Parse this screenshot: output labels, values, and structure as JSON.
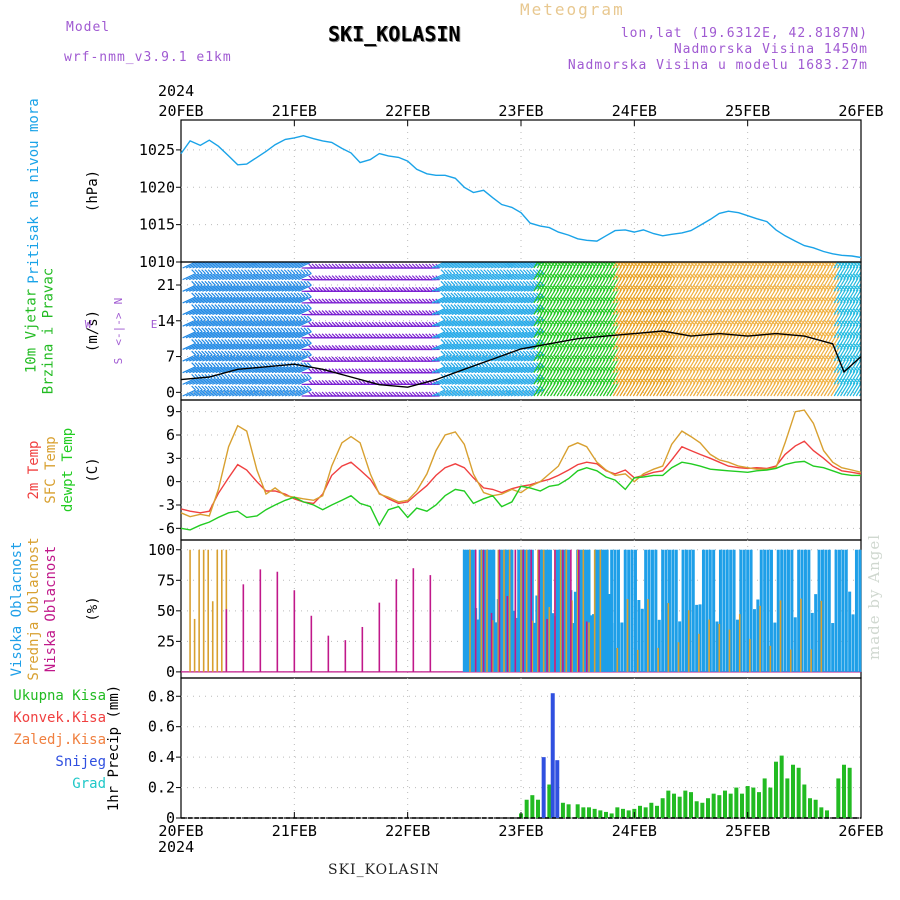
{
  "header": {
    "model_label": "Model",
    "model_name": "wrf-nmm_v3.9.1 e1km",
    "station": "SKI_KOLASIN",
    "product": "Meteogram",
    "lonlat": "lon,lat (19.6312E, 42.8187N)",
    "elevation": "Nadmorska Visina 1450m",
    "model_elevation": "Nadmorska Visina u modelu 1683.27m",
    "year_top": "2024",
    "year_bottom": "2024",
    "footer_station": "SKI_KOLASIN",
    "watermark": "made by Angel"
  },
  "chart_data": [
    {
      "type": "line",
      "panel": "pressure",
      "ylabel_lines": [
        "Pritisak na nivou mora"
      ],
      "unit": "(hPa)",
      "x_days": [
        0,
        0.08,
        0.17,
        0.25,
        0.33,
        0.42,
        0.5,
        0.58,
        0.67,
        0.75,
        0.83,
        0.92,
        1,
        1.08,
        1.17,
        1.25,
        1.33,
        1.42,
        1.5,
        1.58,
        1.67,
        1.75,
        1.83,
        1.92,
        2,
        2.08,
        2.17,
        2.25,
        2.33,
        2.42,
        2.5,
        2.58,
        2.67,
        2.75,
        2.83,
        2.92,
        3,
        3.08,
        3.17,
        3.25,
        3.33,
        3.42,
        3.5,
        3.58,
        3.67,
        3.75,
        3.83,
        3.92,
        4,
        4.08,
        4.17,
        4.25,
        4.33,
        4.42,
        4.5,
        4.58,
        4.67,
        4.75,
        4.83,
        4.92,
        5,
        5.08,
        5.17,
        5.25,
        5.33,
        5.42,
        5.5,
        5.58,
        5.67,
        5.75,
        5.83,
        5.92,
        6
      ],
      "values": [
        1024.5,
        1026.2,
        1025.6,
        1026.3,
        1025.5,
        1024.2,
        1023.0,
        1023.1,
        1024.0,
        1024.8,
        1025.7,
        1026.4,
        1026.6,
        1026.9,
        1026.5,
        1026.2,
        1026.0,
        1025.2,
        1024.6,
        1023.3,
        1023.7,
        1024.5,
        1024.2,
        1024.0,
        1023.5,
        1022.4,
        1021.8,
        1021.6,
        1021.6,
        1021.2,
        1020.0,
        1019.3,
        1019.6,
        1018.6,
        1017.7,
        1017.3,
        1016.6,
        1015.2,
        1014.8,
        1014.6,
        1014.0,
        1013.6,
        1013.1,
        1012.9,
        1012.8,
        1013.5,
        1014.2,
        1014.3,
        1014.0,
        1014.3,
        1013.8,
        1013.5,
        1013.7,
        1013.9,
        1014.2,
        1014.9,
        1015.7,
        1016.5,
        1016.8,
        1016.6,
        1016.2,
        1015.8,
        1015.4,
        1014.3,
        1013.5,
        1012.8,
        1012.2,
        1011.9,
        1011.4,
        1011.1,
        1010.9,
        1010.8,
        1010.6
      ],
      "color": "#1aa3e8",
      "yticks": [
        1010,
        1015,
        1020,
        1025
      ],
      "ylim": [
        1010,
        1029
      ]
    },
    {
      "type": "line",
      "panel": "wind",
      "ylabel_lines": [
        "10m Vjetar",
        "Brzina i Pravac"
      ],
      "unit": "(m/s)",
      "compass": [
        "N",
        "<-|->",
        "S",
        "W",
        "E"
      ],
      "x_days": [
        0,
        0.25,
        0.5,
        0.75,
        1,
        1.25,
        1.5,
        1.75,
        2,
        2.25,
        2.5,
        2.75,
        3,
        3.25,
        3.5,
        3.75,
        4,
        4.25,
        4.5,
        4.75,
        5,
        5.25,
        5.5,
        5.75,
        5.85,
        6
      ],
      "values": [
        2.5,
        3.0,
        4.5,
        5.0,
        5.5,
        4.5,
        3.0,
        1.5,
        1.0,
        2.5,
        4.5,
        6.5,
        8.5,
        9.5,
        10.5,
        11.0,
        11.5,
        12.0,
        11.0,
        11.5,
        11.0,
        11.5,
        11.0,
        9.5,
        4.0,
        7.0
      ],
      "color": "#000000",
      "yticks": [
        0,
        7,
        14,
        21
      ],
      "ylim": [
        -1.5,
        25.5
      ],
      "barb_regimes": [
        {
          "x_start": 0.0,
          "x_end": 1.05,
          "color": "#1e88e5"
        },
        {
          "x_start": 1.05,
          "x_end": 2.2,
          "color": "#7b1fd2"
        },
        {
          "x_start": 2.2,
          "x_end": 3.1,
          "color": "#1ea7e8"
        },
        {
          "x_start": 3.1,
          "x_end": 3.8,
          "color": "#1fc71f"
        },
        {
          "x_start": 3.8,
          "x_end": 4.3,
          "color": "#e8a020"
        },
        {
          "x_start": 4.3,
          "x_end": 5.75,
          "color": "#f0b040"
        },
        {
          "x_start": 5.75,
          "x_end": 6.0,
          "color": "#22bbe0"
        }
      ]
    },
    {
      "type": "line",
      "panel": "temperature",
      "ylabel_lines": [
        "2m Temp",
        "SFC Temp",
        "dewpt Temp"
      ],
      "unit": "(C)",
      "x_days": [
        0,
        0.08,
        0.17,
        0.25,
        0.33,
        0.42,
        0.5,
        0.58,
        0.67,
        0.75,
        0.83,
        0.92,
        1,
        1.08,
        1.17,
        1.25,
        1.33,
        1.42,
        1.5,
        1.58,
        1.67,
        1.75,
        1.83,
        1.92,
        2,
        2.08,
        2.17,
        2.25,
        2.33,
        2.42,
        2.5,
        2.58,
        2.67,
        2.75,
        2.83,
        2.92,
        3,
        3.08,
        3.17,
        3.25,
        3.33,
        3.42,
        3.5,
        3.58,
        3.67,
        3.75,
        3.83,
        3.92,
        4,
        4.08,
        4.17,
        4.25,
        4.33,
        4.42,
        4.5,
        4.58,
        4.67,
        4.75,
        4.83,
        4.92,
        5,
        5.08,
        5.17,
        5.25,
        5.33,
        5.42,
        5.5,
        5.58,
        5.67,
        5.75,
        5.83,
        5.92,
        6
      ],
      "series": [
        {
          "name": "2m Temp",
          "color": "#f04040",
          "values": [
            -3.5,
            -3.8,
            -4.0,
            -3.8,
            -1.5,
            0.5,
            2.2,
            1.5,
            0.0,
            -1.2,
            -1.2,
            -1.6,
            -2.2,
            -2.6,
            -2.8,
            -1.6,
            0.8,
            2.0,
            2.5,
            1.5,
            0.3,
            -1.5,
            -2.2,
            -2.8,
            -2.6,
            -1.6,
            -0.5,
            0.8,
            1.8,
            2.3,
            1.8,
            0.5,
            -0.8,
            -1.0,
            -1.4,
            -0.9,
            -0.6,
            -0.4,
            0.0,
            0.3,
            0.8,
            1.5,
            2.2,
            2.5,
            2.3,
            1.4,
            1.0,
            1.5,
            0.5,
            0.8,
            1.2,
            1.4,
            2.8,
            4.5,
            4.0,
            3.5,
            3.0,
            2.5,
            2.0,
            1.8,
            1.7,
            1.8,
            1.7,
            2.0,
            3.5,
            4.6,
            5.2,
            4.0,
            3.0,
            2.0,
            1.4,
            1.2,
            1.0
          ]
        },
        {
          "name": "SFC Temp",
          "color": "#d8a030",
          "values": [
            -4.0,
            -4.5,
            -4.2,
            -4.4,
            -1.0,
            4.5,
            7.2,
            6.5,
            1.5,
            -1.6,
            -0.8,
            -1.8,
            -2.0,
            -2.2,
            -2.4,
            -1.8,
            2.0,
            5.0,
            5.8,
            5.0,
            1.0,
            -1.6,
            -2.0,
            -2.6,
            -2.4,
            -1.2,
            1.0,
            4.0,
            6.0,
            6.4,
            4.8,
            1.0,
            -1.4,
            -1.8,
            -1.6,
            -1.0,
            -1.4,
            -0.6,
            0.0,
            1.0,
            2.0,
            4.5,
            5.0,
            4.5,
            2.5,
            1.5,
            0.8,
            1.0,
            0.0,
            1.0,
            1.6,
            2.0,
            4.8,
            6.5,
            5.8,
            5.0,
            3.5,
            2.8,
            2.5,
            2.0,
            1.8,
            1.6,
            1.6,
            1.8,
            5.0,
            9.0,
            9.2,
            7.5,
            4.0,
            2.5,
            1.8,
            1.5,
            1.2
          ]
        },
        {
          "name": "dewpt Temp",
          "color": "#22cc22",
          "values": [
            -6.0,
            -6.2,
            -5.6,
            -5.2,
            -4.6,
            -4.0,
            -3.8,
            -4.6,
            -4.4,
            -3.6,
            -3.0,
            -2.4,
            -2.0,
            -2.6,
            -3.0,
            -3.6,
            -3.0,
            -2.4,
            -1.8,
            -2.8,
            -3.2,
            -5.6,
            -3.6,
            -3.2,
            -4.6,
            -3.4,
            -3.8,
            -3.0,
            -1.8,
            -1.0,
            -1.2,
            -2.8,
            -2.2,
            -1.8,
            -3.2,
            -2.6,
            -0.6,
            -0.8,
            -1.2,
            -0.6,
            -0.4,
            0.4,
            1.4,
            1.8,
            1.4,
            0.6,
            0.2,
            -1.0,
            0.5,
            0.6,
            0.8,
            0.8,
            1.8,
            2.5,
            2.3,
            2.0,
            1.6,
            1.5,
            1.4,
            1.3,
            1.2,
            1.4,
            1.5,
            1.7,
            2.2,
            2.5,
            2.6,
            2.0,
            1.8,
            1.4,
            1.0,
            0.8,
            0.8
          ]
        }
      ],
      "yticks": [
        -6,
        -3,
        0,
        3,
        6,
        9
      ],
      "ylim": [
        -7.5,
        10.5
      ]
    },
    {
      "type": "bar",
      "panel": "cloud",
      "ylabel_lines": [
        "Visoka Oblacnost",
        "Srednja Oblacnost",
        "Niska Oblacnost"
      ],
      "unit": "(%)",
      "series": [
        {
          "name": "Visoka Oblacnost",
          "color": "#1e9fe8"
        },
        {
          "name": "Srednja Oblacnost",
          "color": "#d8a030"
        },
        {
          "name": "Niska Oblacnost",
          "color": "#c0188a"
        }
      ],
      "segments": [
        {
          "x_start": 0.08,
          "x_end": 0.4,
          "series": 1,
          "value": 100,
          "step": 0.04
        },
        {
          "x_start": 0.4,
          "x_end": 2.3,
          "series": 2,
          "value": 85,
          "step": 0.15
        },
        {
          "x_start": 2.5,
          "x_end": 3.8,
          "series": 0,
          "value": 100,
          "step": 0.02
        },
        {
          "x_start": 2.55,
          "x_end": 3.7,
          "series": 1,
          "value": 100,
          "step": 0.05
        },
        {
          "x_start": 2.6,
          "x_end": 3.6,
          "series": 2,
          "value": 100,
          "step": 0.07
        },
        {
          "x_start": 3.8,
          "x_end": 6.0,
          "series": 0,
          "value": 100,
          "step": 0.03
        },
        {
          "x_start": 3.85,
          "x_end": 5.7,
          "series": 1,
          "value": 60,
          "step": 0.09
        }
      ],
      "yticks": [
        0,
        25,
        50,
        75,
        100
      ],
      "ylim": [
        -5,
        108
      ]
    },
    {
      "type": "bar",
      "panel": "precip",
      "ylabel_lines": [
        "1hr Precip"
      ],
      "unit": "(mm)",
      "legend": [
        {
          "name": "Ukupna Kisa",
          "color": "#22bb22"
        },
        {
          "name": "Konvek.Kisa",
          "color": "#f04040"
        },
        {
          "name": "Zaledj.Kisa",
          "color": "#f08040"
        },
        {
          "name": "Snijeg",
          "color": "#3050e0"
        },
        {
          "name": "Grad",
          "color": "#20c8c8"
        }
      ],
      "x_days": [
        3.0,
        3.05,
        3.1,
        3.15,
        3.2,
        3.25,
        3.28,
        3.32,
        3.37,
        3.42,
        3.5,
        3.55,
        3.6,
        3.65,
        3.7,
        3.75,
        3.8,
        3.85,
        3.9,
        3.95,
        4.0,
        4.05,
        4.1,
        4.15,
        4.2,
        4.25,
        4.3,
        4.35,
        4.4,
        4.45,
        4.5,
        4.55,
        4.6,
        4.65,
        4.7,
        4.75,
        4.8,
        4.85,
        4.9,
        4.95,
        5.0,
        5.05,
        5.1,
        5.15,
        5.2,
        5.25,
        5.3,
        5.35,
        5.4,
        5.45,
        5.5,
        5.55,
        5.6,
        5.65,
        5.7,
        5.8,
        5.85,
        5.9
      ],
      "values": [
        0.03,
        0.12,
        0.15,
        0.12,
        0.4,
        0.22,
        0.82,
        0.38,
        0.1,
        0.09,
        0.09,
        0.07,
        0.07,
        0.06,
        0.05,
        0.04,
        0.03,
        0.07,
        0.06,
        0.05,
        0.06,
        0.08,
        0.07,
        0.1,
        0.08,
        0.13,
        0.18,
        0.16,
        0.14,
        0.18,
        0.17,
        0.11,
        0.1,
        0.13,
        0.16,
        0.15,
        0.18,
        0.16,
        0.2,
        0.16,
        0.21,
        0.2,
        0.17,
        0.26,
        0.2,
        0.37,
        0.41,
        0.26,
        0.35,
        0.33,
        0.22,
        0.13,
        0.12,
        0.07,
        0.05,
        0.26,
        0.35,
        0.33
      ],
      "yticks": [
        0,
        0.2,
        0.4,
        0.6,
        0.8
      ],
      "ylim": [
        0,
        0.92
      ]
    }
  ],
  "x_axis": {
    "ticks": [
      "20FEB",
      "21FEB",
      "22FEB",
      "23FEB",
      "24FEB",
      "25FEB",
      "26FEB"
    ]
  }
}
